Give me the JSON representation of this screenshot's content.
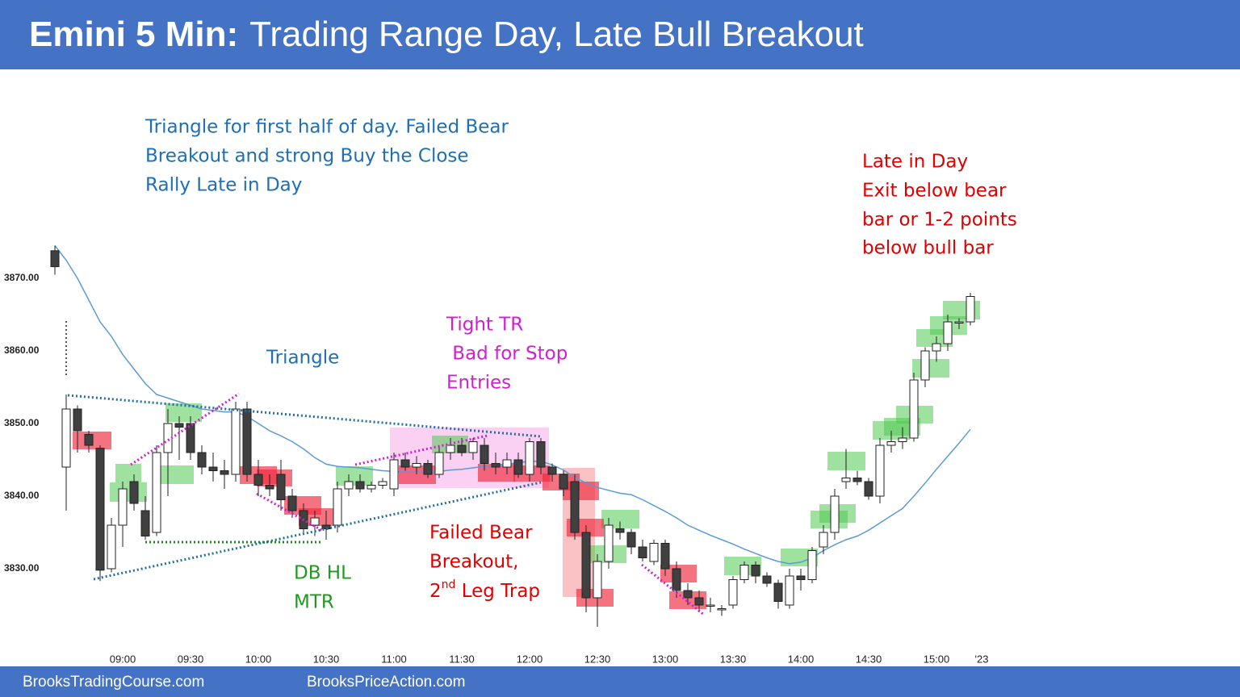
{
  "chart_data": {
    "type": "candlestick",
    "title_bold": "Emini 5 Min:",
    "title": "Trading Range Day, Late Bull Breakout",
    "footer_left": "BrooksTradingCourse.com",
    "footer_right": "BrooksPriceAction.com",
    "ylim": [
      3819.5,
      3876
    ],
    "xlim": [
      -1,
      83
    ],
    "yticks": [
      {
        "value": 3830,
        "label": "3830.00"
      },
      {
        "value": 3840,
        "label": "3840.00"
      },
      {
        "value": 3850,
        "label": "3850.00"
      },
      {
        "value": 3860,
        "label": "3860.00"
      },
      {
        "value": 3870,
        "label": "3870.00"
      }
    ],
    "xticks": [
      {
        "value": 6,
        "label": "09:00"
      },
      {
        "value": 12,
        "label": "09:30"
      },
      {
        "value": 18,
        "label": "10:00"
      },
      {
        "value": 24,
        "label": "10:30"
      },
      {
        "value": 30,
        "label": "11:00"
      },
      {
        "value": 36,
        "label": "11:30"
      },
      {
        "value": 42,
        "label": "12:00"
      },
      {
        "value": 48,
        "label": "12:30"
      },
      {
        "value": 54,
        "label": "13:00"
      },
      {
        "value": 60,
        "label": "13:30"
      },
      {
        "value": 66,
        "label": "14:00"
      },
      {
        "value": 72,
        "label": "14:30"
      },
      {
        "value": 78,
        "label": "15:00"
      },
      {
        "value": 82,
        "label": "'23"
      }
    ],
    "up_color": "#ffffff",
    "down_color": "#404040",
    "open": [
      3873.8,
      3844,
      3852,
      3848.5,
      3846.6,
      3830,
      3836,
      3842,
      3838,
      3835,
      3846,
      3850,
      3850,
      3846,
      3844,
      3843.5,
      3843,
      3852,
      3843,
      3841.5,
      3843,
      3840,
      3838,
      3836,
      3836,
      3836,
      3841,
      3842,
      3841,
      3841.5,
      3841,
      3845,
      3844,
      3844.5,
      3843,
      3846,
      3847,
      3846,
      3847,
      3844.5,
      3844,
      3845,
      3843,
      3847.5,
      3844,
      3843,
      3842,
      3835,
      3826,
      3831,
      3835.5,
      3835,
      3833,
      3831,
      3833.5,
      3830,
      3827,
      3826,
      3825,
      3824.5,
      3825,
      3828.5,
      3830.5,
      3829,
      3828,
      3825,
      3829,
      3828.5,
      3833,
      3835,
      3842,
      3842.5,
      3842,
      3840,
      3847,
      3847.5,
      3848,
      3856,
      3860,
      3861,
      3864,
      3864
    ],
    "high": [
      3874.5,
      3854,
      3852.5,
      3849,
      3847,
      3837,
      3842,
      3843,
      3840,
      3847,
      3852,
      3851,
      3851,
      3847,
      3846,
      3845,
      3853,
      3853,
      3845,
      3843,
      3845,
      3841,
      3839,
      3838,
      3838,
      3842,
      3843,
      3843,
      3842,
      3842.5,
      3846,
      3846,
      3845.5,
      3845,
      3847,
      3848,
      3848,
      3848,
      3848,
      3846,
      3846,
      3846,
      3848,
      3848,
      3844.5,
      3843.5,
      3843,
      3836,
      3832,
      3837,
      3836.5,
      3835.5,
      3834,
      3834,
      3834,
      3831,
      3828,
      3827,
      3826,
      3825,
      3829,
      3831,
      3831,
      3829.5,
      3828.5,
      3830,
      3830,
      3833,
      3836,
      3841,
      3846.5,
      3843.5,
      3842.5,
      3848,
      3849,
      3849.5,
      3857,
      3860.5,
      3862,
      3865,
      3864.5,
      3868
    ],
    "low": [
      3870.5,
      3838,
      3846,
      3846,
      3828.3,
      3829.5,
      3833,
      3838,
      3834,
      3834.5,
      3840,
      3845,
      3845,
      3843,
      3842,
      3841,
      3842,
      3842,
      3840,
      3840,
      3838,
      3837,
      3835,
      3834.5,
      3834,
      3835,
      3840,
      3840.5,
      3840.5,
      3841,
      3840,
      3843.5,
      3843,
      3842.5,
      3842.5,
      3845,
      3845.5,
      3845,
      3843.5,
      3843,
      3843,
      3842.5,
      3842,
      3843,
      3842,
      3840,
      3834,
      3824,
      3822,
      3830,
      3834,
      3832,
      3831,
      3830.5,
      3829,
      3826,
      3825,
      3824,
      3824,
      3823.5,
      3824.5,
      3828,
      3828,
      3827.5,
      3824.5,
      3824.5,
      3827,
      3828,
      3832,
      3834,
      3841,
      3841.5,
      3839.5,
      3839,
      3846,
      3846.5,
      3847.5,
      3855,
      3858.5,
      3860,
      3863,
      3863.5
    ],
    "close": [
      3871.6,
      3852,
      3849,
      3847,
      3829.8,
      3836,
      3841,
      3839,
      3834.5,
      3846,
      3850,
      3849.5,
      3846,
      3844,
      3843.5,
      3843,
      3852,
      3843,
      3841.5,
      3841,
      3839.5,
      3838,
      3835.5,
      3837,
      3835.5,
      3841,
      3842,
      3841,
      3841.5,
      3842,
      3845,
      3844,
      3844.5,
      3843,
      3846,
      3847,
      3846,
      3847.5,
      3844.5,
      3844,
      3845,
      3843,
      3847.5,
      3844,
      3843,
      3841,
      3835,
      3826,
      3831,
      3836,
      3835,
      3833,
      3831.5,
      3833.5,
      3830,
      3827,
      3826,
      3825,
      3825,
      3824.5,
      3828.5,
      3830.5,
      3829,
      3828,
      3825.5,
      3829,
      3828.5,
      3832.5,
      3835,
      3840,
      3842.5,
      3842,
      3840,
      3847,
      3847.5,
      3848,
      3856,
      3860,
      3861,
      3864,
      3864,
      3867.5
    ],
    "ema": {
      "color": "#5b9bd5",
      "values": [
        3874.5,
        3872.5,
        3870,
        3867,
        3864,
        3862,
        3859.5,
        3857.5,
        3855.5,
        3854,
        3853.5,
        3853,
        3852.5,
        3852,
        3851.8,
        3851.6,
        3851.6,
        3851,
        3850,
        3849,
        3848.3,
        3847.5,
        3846.5,
        3845.3,
        3844.4,
        3844.1,
        3844,
        3843.9,
        3843.7,
        3843.5,
        3843.4,
        3843.3,
        3843.3,
        3843.3,
        3843.4,
        3843.6,
        3843.7,
        3843.9,
        3844.1,
        3844.2,
        3844.4,
        3844.6,
        3844.8,
        3844.8,
        3844.3,
        3843.6,
        3842.6,
        3841.8,
        3841.2,
        3840.8,
        3840.4,
        3840.2,
        3839.5,
        3838.7,
        3837.9,
        3837,
        3836,
        3835.3,
        3834.6,
        3834,
        3833.4,
        3832.7,
        3832.1,
        3831.5,
        3831,
        3830.7,
        3830.9,
        3831.5,
        3832.5,
        3833.3,
        3834,
        3834.5,
        3835.3,
        3836.3,
        3837.3,
        3838.3,
        3840,
        3841.8,
        3843.7,
        3845.5,
        3847.3,
        3849.2
      ]
    },
    "annotations": {
      "summary": [
        "Triangle for first half of day. Failed Bear",
        "Breakout and strong Buy the Close",
        "Rally Late in Day"
      ],
      "triangle": "Triangle",
      "tight_tr": [
        "Tight TR",
        " Bad for Stop",
        "Entries"
      ],
      "late": [
        "Late in Day",
        "Exit below bear",
        "bar or 1-2 points",
        "below bull bar"
      ],
      "db": [
        "DB HL",
        "MTR"
      ],
      "failed": [
        "Failed Bear",
        "Breakout,"
      ],
      "trap": [
        "2",
        "nd",
        " Leg Trap"
      ]
    }
  }
}
